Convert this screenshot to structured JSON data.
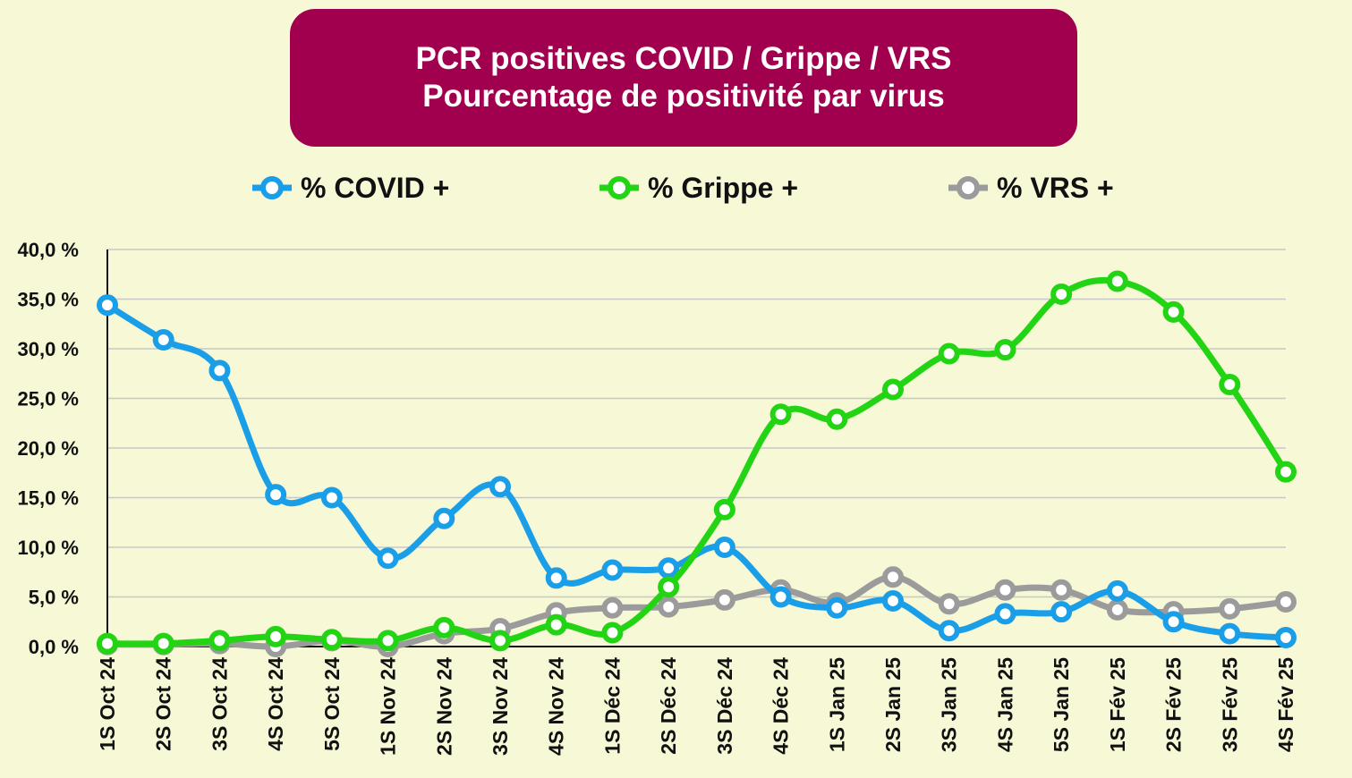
{
  "chart_data": {
    "type": "line",
    "title": "PCR positives COVID / Grippe / VRS",
    "subtitle": "Pourcentage de positivité par virus",
    "categories": [
      "1S Oct 24",
      "2S Oct 24",
      "3S Oct 24",
      "4S Oct 24",
      "5S Oct 24",
      "1S Nov 24",
      "2S Nov 24",
      "3S Nov 24",
      "4S Nov 24",
      "1S Déc 24",
      "2S Déc 24",
      "3S Déc 24",
      "4S Déc 24",
      "1S Jan 25",
      "2S Jan 25",
      "3S Jan 25",
      "4S Jan 25",
      "5S Jan 25",
      "1S Fév 25",
      "2S Fév 25",
      "3S Fév 25",
      "4S Fév 25"
    ],
    "series": [
      {
        "name": "% COVID +",
        "color": "#1a9ee8",
        "values": [
          34.4,
          30.9,
          27.8,
          15.3,
          15.0,
          8.9,
          12.9,
          16.1,
          6.9,
          7.7,
          7.9,
          10.0,
          5.0,
          3.9,
          4.6,
          1.6,
          3.3,
          3.5,
          5.6,
          2.5,
          1.3,
          0.9
        ]
      },
      {
        "name": "% Grippe +",
        "color": "#22d414",
        "values": [
          0.3,
          0.3,
          0.6,
          1.0,
          0.7,
          0.6,
          1.9,
          0.6,
          2.2,
          1.4,
          6.0,
          13.8,
          23.4,
          22.9,
          25.9,
          29.5,
          29.9,
          35.5,
          36.8,
          33.7,
          26.4,
          17.6
        ]
      },
      {
        "name": "% VRS +",
        "color": "#9b9b9b",
        "values": [
          0.2,
          0.2,
          0.3,
          0.0,
          0.6,
          0.0,
          1.3,
          1.8,
          3.4,
          3.9,
          4.0,
          4.7,
          5.7,
          4.4,
          7.0,
          4.3,
          5.7,
          5.7,
          3.7,
          3.5,
          3.8,
          4.5
        ]
      }
    ],
    "ylim": [
      0,
      40
    ],
    "yticks": [
      "0,0 %",
      "5,0 %",
      "10,0 %",
      "15,0 %",
      "20,0 %",
      "25,0 %",
      "30,0 %",
      "35,0 %",
      "40,0 %"
    ],
    "grid": true,
    "legend": "top"
  },
  "colors": {
    "background": "#f6f8d6",
    "title_box": "#a0004e",
    "grid": "#c8c8c8"
  }
}
